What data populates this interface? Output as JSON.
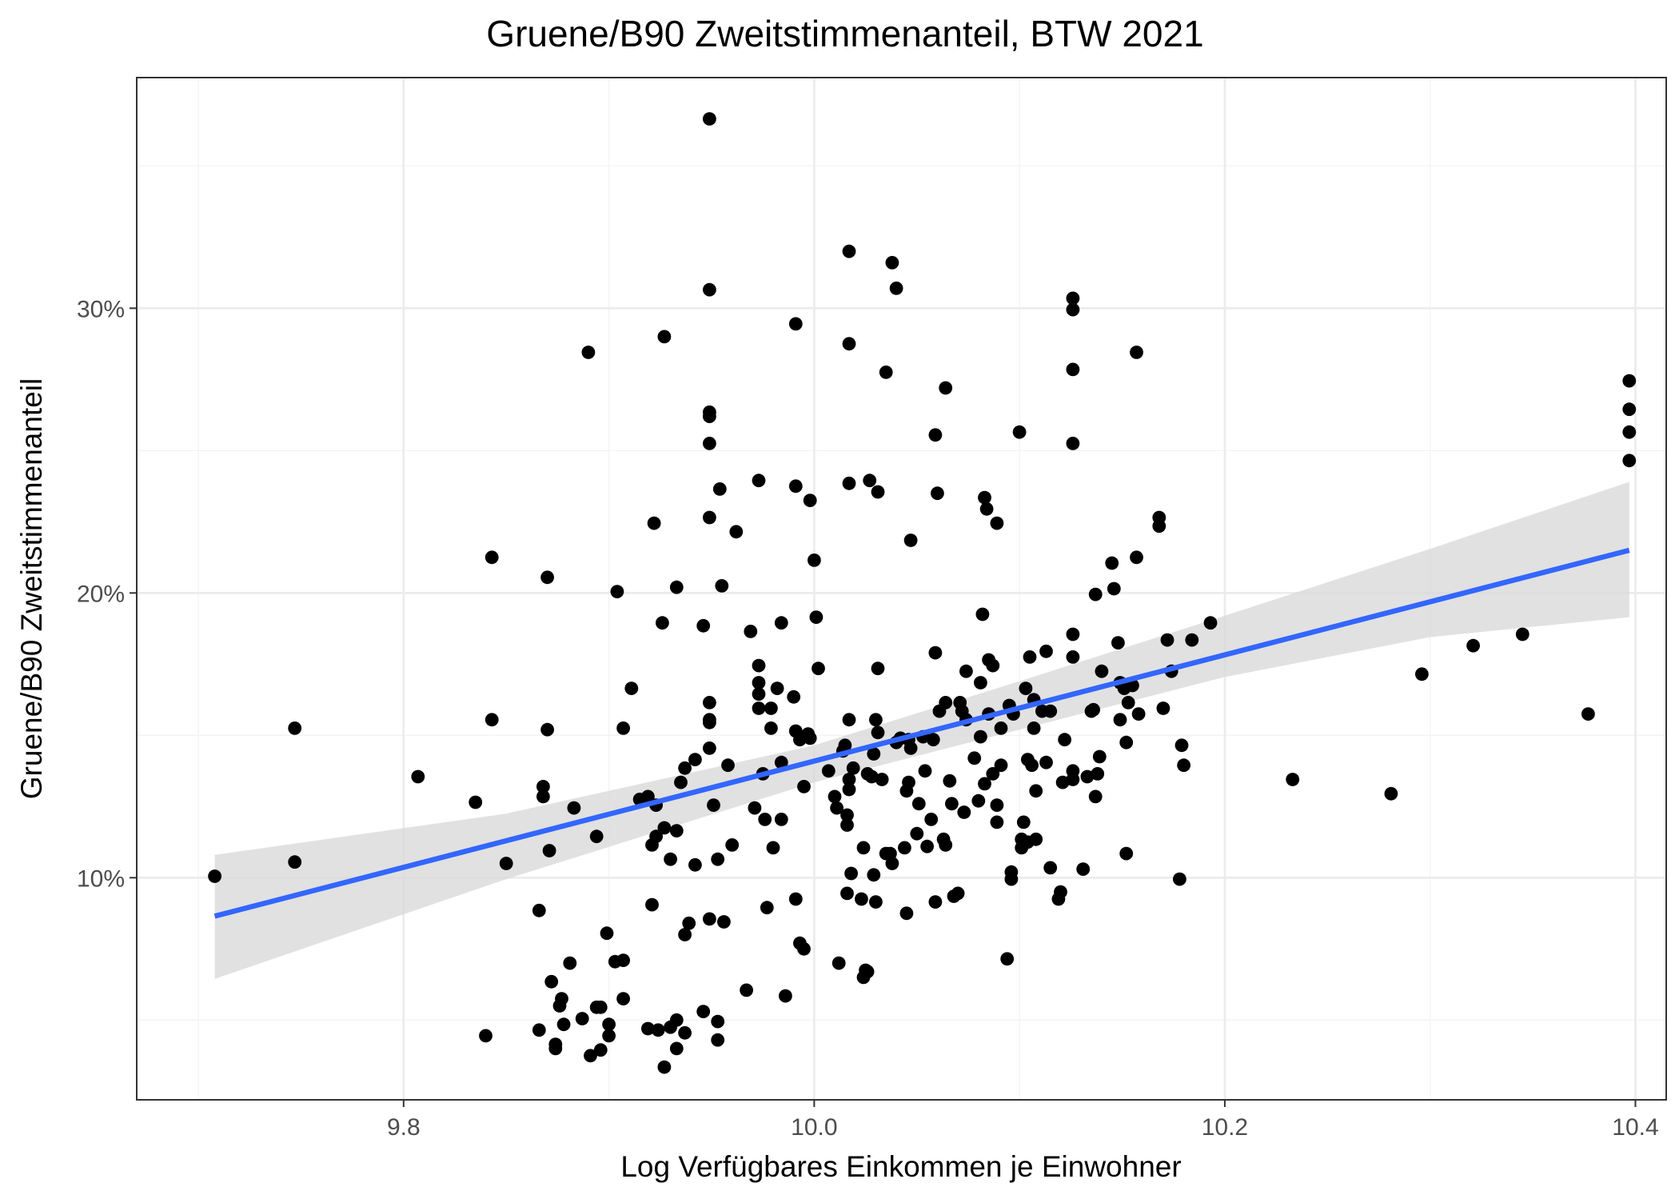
{
  "chart_data": {
    "type": "scatter",
    "title": "Gruene/B90 Zweitstimmenanteil, BTW 2021",
    "xlabel": "Log Verfügbares Einkommen je Einwohner",
    "ylabel": "Gruene/B90 Zweitstimmenanteil",
    "xlim": [
      9.67,
      10.415
    ],
    "ylim": [
      2.2,
      38.1
    ],
    "x_ticks": [
      {
        "value": 9.8,
        "label": "9.8"
      },
      {
        "value": 10.0,
        "label": "10.0"
      },
      {
        "value": 10.2,
        "label": "10.2"
      },
      {
        "value": 10.4,
        "label": "10.4"
      }
    ],
    "y_ticks": [
      {
        "value": 10,
        "label": "10%"
      },
      {
        "value": 20,
        "label": "20%"
      },
      {
        "value": 30,
        "label": "30%"
      }
    ],
    "x_minor": [
      9.7,
      9.9,
      10.1,
      10.3
    ],
    "y_minor": [
      5,
      15,
      25,
      35
    ],
    "grid": true,
    "legend": "none",
    "colors": {
      "points": "#000000",
      "fit_line": "#3366ff",
      "confidence_band": "#d9d9d9"
    },
    "fit": {
      "type": "linear",
      "x_range": [
        9.708,
        10.397
      ],
      "line": [
        [
          9.708,
          8.65
        ],
        [
          10.397,
          21.5
        ]
      ],
      "band": [
        [
          9.708,
          6.45,
          10.8
        ],
        [
          9.85,
          9.95,
          12.25
        ],
        [
          10.0,
          13.35,
          14.65
        ],
        [
          10.1,
          15.2,
          16.9
        ],
        [
          10.2,
          17.05,
          19.2
        ],
        [
          10.3,
          18.45,
          21.55
        ],
        [
          10.397,
          19.15,
          23.9
        ]
      ]
    },
    "points": [
      [
        9.708,
        10.05
      ],
      [
        9.747,
        15.25
      ],
      [
        9.747,
        10.55
      ],
      [
        9.807,
        13.55
      ],
      [
        9.835,
        12.65
      ],
      [
        9.84,
        4.45
      ],
      [
        9.843,
        21.25
      ],
      [
        9.843,
        15.55
      ],
      [
        9.85,
        10.5
      ],
      [
        9.866,
        8.85
      ],
      [
        9.866,
        4.65
      ],
      [
        9.868,
        13.2
      ],
      [
        9.868,
        12.85
      ],
      [
        9.87,
        20.55
      ],
      [
        9.87,
        15.2
      ],
      [
        9.871,
        10.95
      ],
      [
        9.872,
        6.35
      ],
      [
        9.874,
        4.15
      ],
      [
        9.874,
        4.0
      ],
      [
        9.876,
        5.5
      ],
      [
        9.877,
        5.75
      ],
      [
        9.878,
        4.85
      ],
      [
        9.881,
        7.0
      ],
      [
        9.883,
        12.45
      ],
      [
        9.887,
        5.05
      ],
      [
        9.89,
        28.45
      ],
      [
        9.891,
        3.75
      ],
      [
        9.894,
        5.45
      ],
      [
        9.894,
        11.45
      ],
      [
        9.896,
        3.95
      ],
      [
        9.896,
        5.45
      ],
      [
        9.899,
        8.05
      ],
      [
        9.9,
        4.85
      ],
      [
        9.9,
        4.45
      ],
      [
        9.903,
        7.05
      ],
      [
        9.904,
        20.05
      ],
      [
        9.907,
        5.75
      ],
      [
        9.907,
        7.1
      ],
      [
        9.907,
        15.25
      ],
      [
        9.911,
        16.65
      ],
      [
        9.915,
        12.75
      ],
      [
        9.919,
        12.85
      ],
      [
        9.919,
        4.7
      ],
      [
        9.921,
        11.15
      ],
      [
        9.921,
        9.05
      ],
      [
        9.922,
        22.45
      ],
      [
        9.923,
        12.55
      ],
      [
        9.923,
        11.45
      ],
      [
        9.924,
        4.65
      ],
      [
        9.926,
        18.95
      ],
      [
        9.927,
        3.35
      ],
      [
        9.927,
        29.0
      ],
      [
        9.927,
        11.75
      ],
      [
        9.93,
        10.65
      ],
      [
        9.93,
        4.75
      ],
      [
        9.933,
        4.0
      ],
      [
        9.933,
        5.0
      ],
      [
        9.933,
        11.65
      ],
      [
        9.933,
        20.2
      ],
      [
        9.935,
        13.35
      ],
      [
        9.937,
        8.0
      ],
      [
        9.937,
        4.55
      ],
      [
        9.937,
        13.85
      ],
      [
        9.939,
        8.4
      ],
      [
        9.942,
        10.45
      ],
      [
        9.942,
        14.15
      ],
      [
        9.946,
        18.85
      ],
      [
        9.946,
        5.3
      ],
      [
        9.949,
        36.65
      ],
      [
        9.949,
        30.65
      ],
      [
        9.949,
        26.35
      ],
      [
        9.949,
        26.2
      ],
      [
        9.949,
        25.25
      ],
      [
        9.949,
        22.65
      ],
      [
        9.949,
        16.15
      ],
      [
        9.949,
        15.55
      ],
      [
        9.949,
        15.45
      ],
      [
        9.949,
        14.55
      ],
      [
        9.949,
        8.55
      ],
      [
        9.951,
        12.55
      ],
      [
        9.953,
        4.95
      ],
      [
        9.953,
        4.3
      ],
      [
        9.953,
        10.65
      ],
      [
        9.954,
        23.65
      ],
      [
        9.955,
        20.25
      ],
      [
        9.956,
        8.45
      ],
      [
        9.958,
        13.95
      ],
      [
        9.96,
        11.15
      ],
      [
        9.962,
        22.15
      ],
      [
        9.967,
        6.05
      ],
      [
        9.969,
        18.65
      ],
      [
        9.971,
        12.45
      ],
      [
        9.973,
        23.95
      ],
      [
        9.973,
        17.45
      ],
      [
        9.973,
        16.85
      ],
      [
        9.973,
        16.45
      ],
      [
        9.973,
        15.95
      ],
      [
        9.975,
        13.65
      ],
      [
        9.976,
        12.05
      ],
      [
        9.977,
        8.95
      ],
      [
        9.979,
        15.95
      ],
      [
        9.979,
        15.25
      ],
      [
        9.98,
        11.05
      ],
      [
        9.982,
        16.65
      ],
      [
        9.984,
        18.95
      ],
      [
        9.984,
        14.05
      ],
      [
        9.984,
        12.05
      ],
      [
        9.986,
        5.85
      ],
      [
        9.99,
        16.35
      ],
      [
        9.991,
        29.45
      ],
      [
        9.991,
        23.75
      ],
      [
        9.991,
        15.15
      ],
      [
        9.991,
        9.25
      ],
      [
        9.993,
        14.85
      ],
      [
        9.993,
        7.7
      ],
      [
        9.995,
        13.2
      ],
      [
        9.995,
        7.5
      ],
      [
        9.997,
        15.05
      ],
      [
        9.998,
        23.25
      ],
      [
        9.998,
        14.9
      ],
      [
        10.0,
        21.15
      ],
      [
        10.001,
        19.15
      ],
      [
        10.002,
        17.35
      ],
      [
        10.007,
        13.75
      ],
      [
        10.01,
        12.85
      ],
      [
        10.011,
        12.45
      ],
      [
        10.012,
        7.0
      ],
      [
        10.014,
        14.45
      ],
      [
        10.015,
        14.65
      ],
      [
        10.016,
        11.85
      ],
      [
        10.016,
        12.2
      ],
      [
        10.016,
        9.45
      ],
      [
        10.017,
        32.0
      ],
      [
        10.017,
        28.75
      ],
      [
        10.017,
        23.85
      ],
      [
        10.017,
        15.55
      ],
      [
        10.017,
        13.45
      ],
      [
        10.017,
        13.1
      ],
      [
        10.018,
        10.15
      ],
      [
        10.019,
        13.85
      ],
      [
        10.023,
        9.25
      ],
      [
        10.024,
        11.05
      ],
      [
        10.024,
        6.5
      ],
      [
        10.025,
        6.75
      ],
      [
        10.026,
        13.65
      ],
      [
        10.026,
        6.7
      ],
      [
        10.027,
        23.95
      ],
      [
        10.028,
        13.55
      ],
      [
        10.029,
        10.1
      ],
      [
        10.029,
        14.35
      ],
      [
        10.03,
        9.15
      ],
      [
        10.03,
        15.55
      ],
      [
        10.031,
        23.55
      ],
      [
        10.031,
        17.35
      ],
      [
        10.031,
        15.1
      ],
      [
        10.033,
        13.45
      ],
      [
        10.035,
        27.75
      ],
      [
        10.035,
        10.85
      ],
      [
        10.037,
        10.85
      ],
      [
        10.038,
        10.5
      ],
      [
        10.038,
        31.6
      ],
      [
        10.04,
        14.75
      ],
      [
        10.04,
        30.7
      ],
      [
        10.042,
        14.9
      ],
      [
        10.044,
        11.05
      ],
      [
        10.045,
        13.05
      ],
      [
        10.045,
        8.75
      ],
      [
        10.046,
        14.85
      ],
      [
        10.046,
        13.35
      ],
      [
        10.047,
        21.85
      ],
      [
        10.047,
        14.55
      ],
      [
        10.05,
        11.55
      ],
      [
        10.051,
        12.6
      ],
      [
        10.053,
        14.95
      ],
      [
        10.054,
        13.75
      ],
      [
        10.055,
        11.1
      ],
      [
        10.057,
        12.05
      ],
      [
        10.058,
        14.85
      ],
      [
        10.059,
        9.15
      ],
      [
        10.059,
        17.9
      ],
      [
        10.059,
        25.55
      ],
      [
        10.06,
        23.5
      ],
      [
        10.061,
        15.85
      ],
      [
        10.063,
        11.35
      ],
      [
        10.064,
        27.2
      ],
      [
        10.064,
        16.15
      ],
      [
        10.064,
        11.15
      ],
      [
        10.066,
        13.4
      ],
      [
        10.067,
        12.6
      ],
      [
        10.068,
        9.35
      ],
      [
        10.07,
        9.45
      ],
      [
        10.071,
        16.15
      ],
      [
        10.072,
        15.85
      ],
      [
        10.073,
        12.3
      ],
      [
        10.074,
        17.25
      ],
      [
        10.074,
        15.55
      ],
      [
        10.078,
        14.2
      ],
      [
        10.08,
        12.7
      ],
      [
        10.081,
        14.95
      ],
      [
        10.081,
        16.85
      ],
      [
        10.082,
        19.25
      ],
      [
        10.083,
        23.35
      ],
      [
        10.083,
        13.3
      ],
      [
        10.084,
        22.95
      ],
      [
        10.085,
        17.65
      ],
      [
        10.085,
        15.75
      ],
      [
        10.087,
        13.65
      ],
      [
        10.087,
        17.45
      ],
      [
        10.089,
        22.45
      ],
      [
        10.089,
        11.95
      ],
      [
        10.089,
        12.55
      ],
      [
        10.091,
        13.95
      ],
      [
        10.091,
        15.25
      ],
      [
        10.094,
        7.15
      ],
      [
        10.095,
        16.05
      ],
      [
        10.096,
        10.2
      ],
      [
        10.096,
        9.95
      ],
      [
        10.097,
        15.75
      ],
      [
        10.1,
        25.65
      ],
      [
        10.101,
        11.35
      ],
      [
        10.101,
        11.05
      ],
      [
        10.102,
        11.95
      ],
      [
        10.103,
        16.65
      ],
      [
        10.104,
        11.25
      ],
      [
        10.104,
        14.15
      ],
      [
        10.105,
        17.75
      ],
      [
        10.106,
        13.95
      ],
      [
        10.107,
        15.25
      ],
      [
        10.107,
        16.25
      ],
      [
        10.108,
        11.35
      ],
      [
        10.108,
        13.05
      ],
      [
        10.111,
        15.85
      ],
      [
        10.113,
        17.95
      ],
      [
        10.113,
        14.05
      ],
      [
        10.115,
        10.35
      ],
      [
        10.115,
        15.85
      ],
      [
        10.119,
        9.25
      ],
      [
        10.12,
        9.5
      ],
      [
        10.121,
        13.35
      ],
      [
        10.122,
        14.85
      ],
      [
        10.126,
        13.45
      ],
      [
        10.126,
        13.75
      ],
      [
        10.126,
        17.75
      ],
      [
        10.126,
        18.55
      ],
      [
        10.126,
        30.35
      ],
      [
        10.126,
        29.95
      ],
      [
        10.126,
        27.85
      ],
      [
        10.126,
        25.25
      ],
      [
        10.131,
        10.3
      ],
      [
        10.133,
        13.55
      ],
      [
        10.135,
        15.85
      ],
      [
        10.136,
        15.9
      ],
      [
        10.137,
        12.85
      ],
      [
        10.137,
        19.95
      ],
      [
        10.138,
        13.65
      ],
      [
        10.139,
        14.25
      ],
      [
        10.14,
        17.25
      ],
      [
        10.145,
        21.05
      ],
      [
        10.146,
        20.15
      ],
      [
        10.148,
        18.25
      ],
      [
        10.149,
        16.85
      ],
      [
        10.149,
        15.55
      ],
      [
        10.151,
        16.65
      ],
      [
        10.152,
        14.75
      ],
      [
        10.152,
        10.85
      ],
      [
        10.153,
        16.15
      ],
      [
        10.155,
        16.75
      ],
      [
        10.157,
        21.25
      ],
      [
        10.157,
        28.45
      ],
      [
        10.158,
        15.75
      ],
      [
        10.168,
        22.65
      ],
      [
        10.168,
        22.35
      ],
      [
        10.17,
        15.95
      ],
      [
        10.172,
        18.35
      ],
      [
        10.174,
        17.25
      ],
      [
        10.178,
        9.95
      ],
      [
        10.179,
        14.65
      ],
      [
        10.18,
        13.95
      ],
      [
        10.184,
        18.35
      ],
      [
        10.193,
        18.95
      ],
      [
        10.233,
        13.45
      ],
      [
        10.281,
        12.95
      ],
      [
        10.296,
        17.15
      ],
      [
        10.321,
        18.15
      ],
      [
        10.345,
        18.55
      ],
      [
        10.377,
        15.75
      ],
      [
        10.397,
        27.45
      ],
      [
        10.397,
        26.45
      ],
      [
        10.397,
        25.65
      ],
      [
        10.397,
        24.65
      ]
    ]
  }
}
